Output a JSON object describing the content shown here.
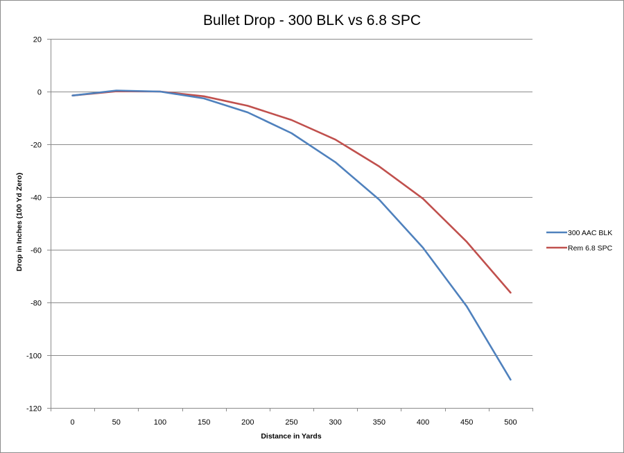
{
  "chart_data": {
    "type": "line",
    "title": "Bullet Drop - 300 BLK vs 6.8 SPC",
    "xlabel": "Distance in Yards",
    "ylabel": "Drop in Inches (100 Yd Zero)",
    "categories": [
      "0",
      "50",
      "100",
      "150",
      "200",
      "250",
      "300",
      "350",
      "400",
      "450",
      "500"
    ],
    "ylim": [
      -120,
      20
    ],
    "yticks": [
      "20",
      "0",
      "-20",
      "-40",
      "-60",
      "-80",
      "-100",
      "-120"
    ],
    "ytick_values": [
      20,
      0,
      -20,
      -40,
      -60,
      -80,
      -100,
      -120
    ],
    "grid": true,
    "legend_position": "right",
    "series": [
      {
        "name": "300 AAC BLK",
        "color": "#4f81bd",
        "values": [
          -1.5,
          0.4,
          0,
          -2.6,
          -7.9,
          -15.8,
          -26.8,
          -41.0,
          -59.2,
          -81.5,
          -109.3
        ]
      },
      {
        "name": "Rem 6.8 SPC",
        "color": "#c0504d",
        "values": [
          -1.5,
          0.1,
          0,
          -1.8,
          -5.4,
          -10.8,
          -18.2,
          -28.4,
          -40.6,
          -57.0,
          -76.3
        ]
      }
    ]
  }
}
